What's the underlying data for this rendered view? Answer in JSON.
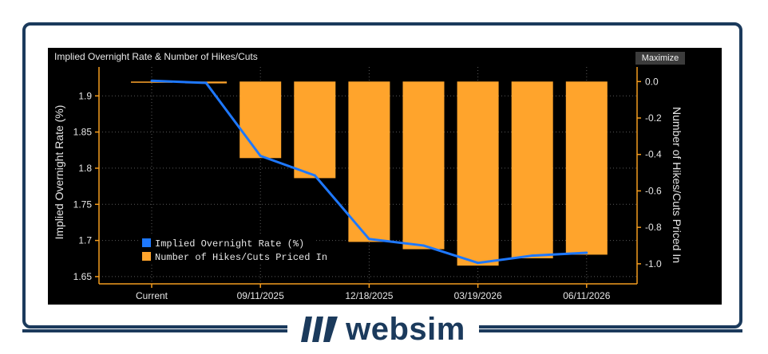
{
  "panel": {
    "title": "Implied Overnight Rate & Number of Hikes/Cuts",
    "maximize_label": "Maximize"
  },
  "brand": {
    "name": "websim"
  },
  "colors": {
    "line": "#1e78ff",
    "bar": "#ffa42c",
    "axis": "#f39c1f",
    "text": "#e6e6e6"
  },
  "chart_data": {
    "type": "bar",
    "title": "Implied Overnight Rate & Number of Hikes/Cuts",
    "x_tick_labels": [
      "Current",
      "09/11/2025",
      "12/18/2025",
      "03/19/2026",
      "06/11/2026"
    ],
    "left_axis": {
      "label": "Implied Overnight Rate (%)",
      "ylim": [
        1.64,
        1.94
      ],
      "ticks": [
        1.65,
        1.7,
        1.75,
        1.8,
        1.85,
        1.9
      ]
    },
    "right_axis": {
      "label": "Number of Hikes/Cuts Priced In",
      "ylim": [
        -1.11,
        0.08
      ],
      "ticks": [
        0.0,
        -0.2,
        -0.4,
        -0.6,
        -0.8,
        -1.0
      ],
      "tick_labels": [
        "0.0",
        "-0.2",
        "-0.4",
        "-0.6",
        "-0.8",
        "-1.0"
      ]
    },
    "grid": true,
    "legend": "bottom-left",
    "series": [
      {
        "name": "Implied Overnight Rate (%)",
        "type": "line",
        "axis": "left",
        "values": [
          1.921,
          1.918,
          1.817,
          1.79,
          1.702,
          1.693,
          1.669,
          1.679,
          1.683
        ]
      },
      {
        "name": "Number of Hikes/Cuts Priced In",
        "type": "bar",
        "axis": "right",
        "values": [
          0.0,
          -0.01,
          -0.42,
          -0.53,
          -0.88,
          -0.92,
          -1.01,
          -0.97,
          -0.95
        ]
      }
    ]
  }
}
